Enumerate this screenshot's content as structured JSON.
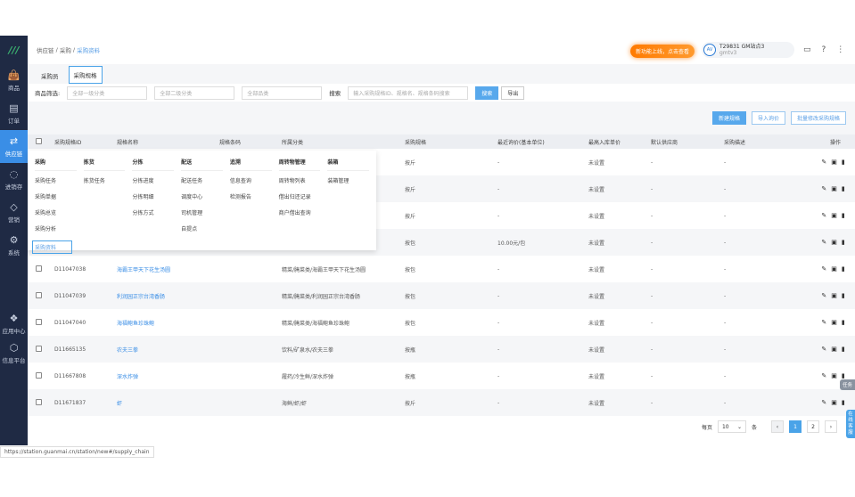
{
  "sidebar": {
    "items": [
      {
        "label": "商品",
        "icon": "bag-icon"
      },
      {
        "label": "订单",
        "icon": "document-icon"
      },
      {
        "label": "供应链",
        "icon": "exchange-icon",
        "active": true
      },
      {
        "label": "进销存",
        "icon": "cube-icon"
      },
      {
        "label": "营销",
        "icon": "tag-icon"
      },
      {
        "label": "系统",
        "icon": "gear-icon"
      },
      {
        "label": "应用中心",
        "icon": "apps-icon"
      },
      {
        "label": "信息平台",
        "icon": "hexagon-icon"
      }
    ]
  },
  "breadcrumb": [
    "供应链",
    "采购",
    "采购资料"
  ],
  "header": {
    "promo": "新功能上线，点击查看",
    "user_name": "T29831 GM站点3",
    "user_sub": "gmtv3",
    "logo": "AV"
  },
  "tabs": [
    "采购员",
    "采购规格"
  ],
  "filters": {
    "label": "商品筛选:",
    "cat1": "全部一级分类",
    "cat2": "全部二级分类",
    "pinlei": "全部品类",
    "search_label": "搜索",
    "search_placeholder": "输入采购规格ID、规格名、规格条码搜索",
    "search_btn": "搜索",
    "export_btn": "导出"
  },
  "actions": {
    "new": "新建规格",
    "import": "导入询价",
    "batch": "批量修改采购规格"
  },
  "table": {
    "headers": [
      "采购规格ID",
      "规格名称",
      "规格条码",
      "所属分类",
      "采购规格",
      "最近询价(基本单位)",
      "最高入库单价",
      "默认供应商",
      "采购描述",
      "操作"
    ],
    "rows": [
      {
        "id": "",
        "name": "",
        "barcode": "",
        "category": "",
        "spec": "按斤",
        "price": "-",
        "max": "未设置",
        "supplier": "-",
        "desc": "-"
      },
      {
        "id": "",
        "name": "",
        "barcode": "",
        "category": "",
        "spec": "按斤",
        "price": "-",
        "max": "未设置",
        "supplier": "-",
        "desc": "-"
      },
      {
        "id": "",
        "name": "",
        "barcode": "",
        "category": "",
        "spec": "按斤",
        "price": "-",
        "max": "未设置",
        "supplier": "-",
        "desc": "-"
      },
      {
        "id": "",
        "name": "",
        "barcode": "",
        "category": "",
        "spec": "按包",
        "price": "10.00元/包",
        "max": "未设置",
        "supplier": "-",
        "desc": "-"
      },
      {
        "id": "D11047038",
        "name": "海霸王甲天下花生汤圆",
        "barcode": "",
        "category": "精菜/腌菜类/海霸王甲天下花生汤圆",
        "spec": "按包",
        "price": "-",
        "max": "未设置",
        "supplier": "-",
        "desc": "-"
      },
      {
        "id": "D11047039",
        "name": "利润园正宗台湾香肠",
        "barcode": "",
        "category": "精菜/腌菜类/利润园正宗台湾香肠",
        "spec": "按包",
        "price": "-",
        "max": "未设置",
        "supplier": "-",
        "desc": "-"
      },
      {
        "id": "D11047040",
        "name": "海福鲍鱼珍珠鲍",
        "barcode": "",
        "category": "精菜/腌菜类/海福鲍鱼珍珠鲍",
        "spec": "按包",
        "price": "-",
        "max": "未设置",
        "supplier": "-",
        "desc": "-"
      },
      {
        "id": "D11665135",
        "name": "农夫三拳",
        "barcode": "",
        "category": "饮料/矿泉水/农夫三拳",
        "spec": "按瓶",
        "price": "-",
        "max": "未设置",
        "supplier": "-",
        "desc": "-"
      },
      {
        "id": "D11667808",
        "name": "深水炸弹",
        "barcode": "",
        "category": "履药/冷生鲜/深水炸弹",
        "spec": "按瓶",
        "price": "-",
        "max": "未设置",
        "supplier": "-",
        "desc": "-"
      },
      {
        "id": "D11671837",
        "name": "虾",
        "barcode": "",
        "category": "海鲜/虾/虾",
        "spec": "按斤",
        "price": "-",
        "max": "未设置",
        "supplier": "-",
        "desc": "-"
      }
    ]
  },
  "menu": [
    {
      "title": "采购",
      "items": [
        "采购任务",
        "采购单据",
        "采购总览",
        "采购分析",
        "采购资料"
      ]
    },
    {
      "title": "拣货",
      "items": [
        "拣货任务"
      ]
    },
    {
      "title": "分拣",
      "items": [
        "分拣进度",
        "分拣明细",
        "分拣方式"
      ]
    },
    {
      "title": "配送",
      "items": [
        "配送任务",
        "调度中心",
        "司机管理",
        "自提点"
      ]
    },
    {
      "title": "追溯",
      "items": [
        "信息查询",
        "检测报告"
      ]
    },
    {
      "title": "周转物管理",
      "items": [
        "周转物列表",
        "借出归还记录",
        "商户借出查询"
      ]
    },
    {
      "title": "装箱",
      "items": [
        "装箱管理"
      ]
    }
  ],
  "pagination": {
    "per_page_label": "每页",
    "per_page": "10",
    "unit": "条",
    "pages": [
      "1",
      "2"
    ],
    "current": "1",
    "prev": "‹",
    "next": "›"
  },
  "floats": {
    "task": "任务",
    "service": "在线客服"
  },
  "status_url": "https://station.guanmai.cn/station/new#/supply_chain"
}
